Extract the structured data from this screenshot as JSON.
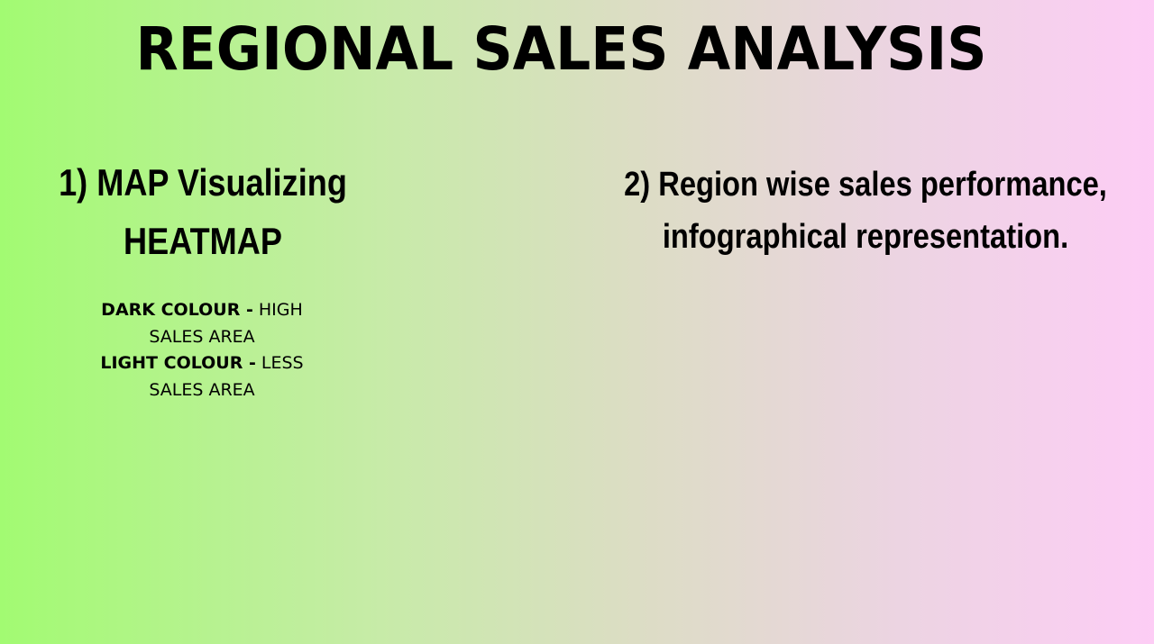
{
  "title": "REGIONAL SALES ANALYSIS",
  "left_section": {
    "heading_line1": "1) MAP Visualizing",
    "heading_line2": "HEATMAP",
    "legend": {
      "dark_key": "DARK COLOUR -",
      "dark_value_line1": " HIGH",
      "dark_value_line2": "SALES AREA",
      "light_key": "LIGHT COLOUR -",
      "light_value_line1": " LESS",
      "light_value_line2": "SALES AREA"
    }
  },
  "right_section": {
    "heading_line1": "2) Region wise sales performance,",
    "heading_line2": "infographical representation."
  },
  "colors": {
    "gradient_start": "#a2fb72",
    "gradient_end": "#fdcdf5",
    "text": "#000000"
  }
}
